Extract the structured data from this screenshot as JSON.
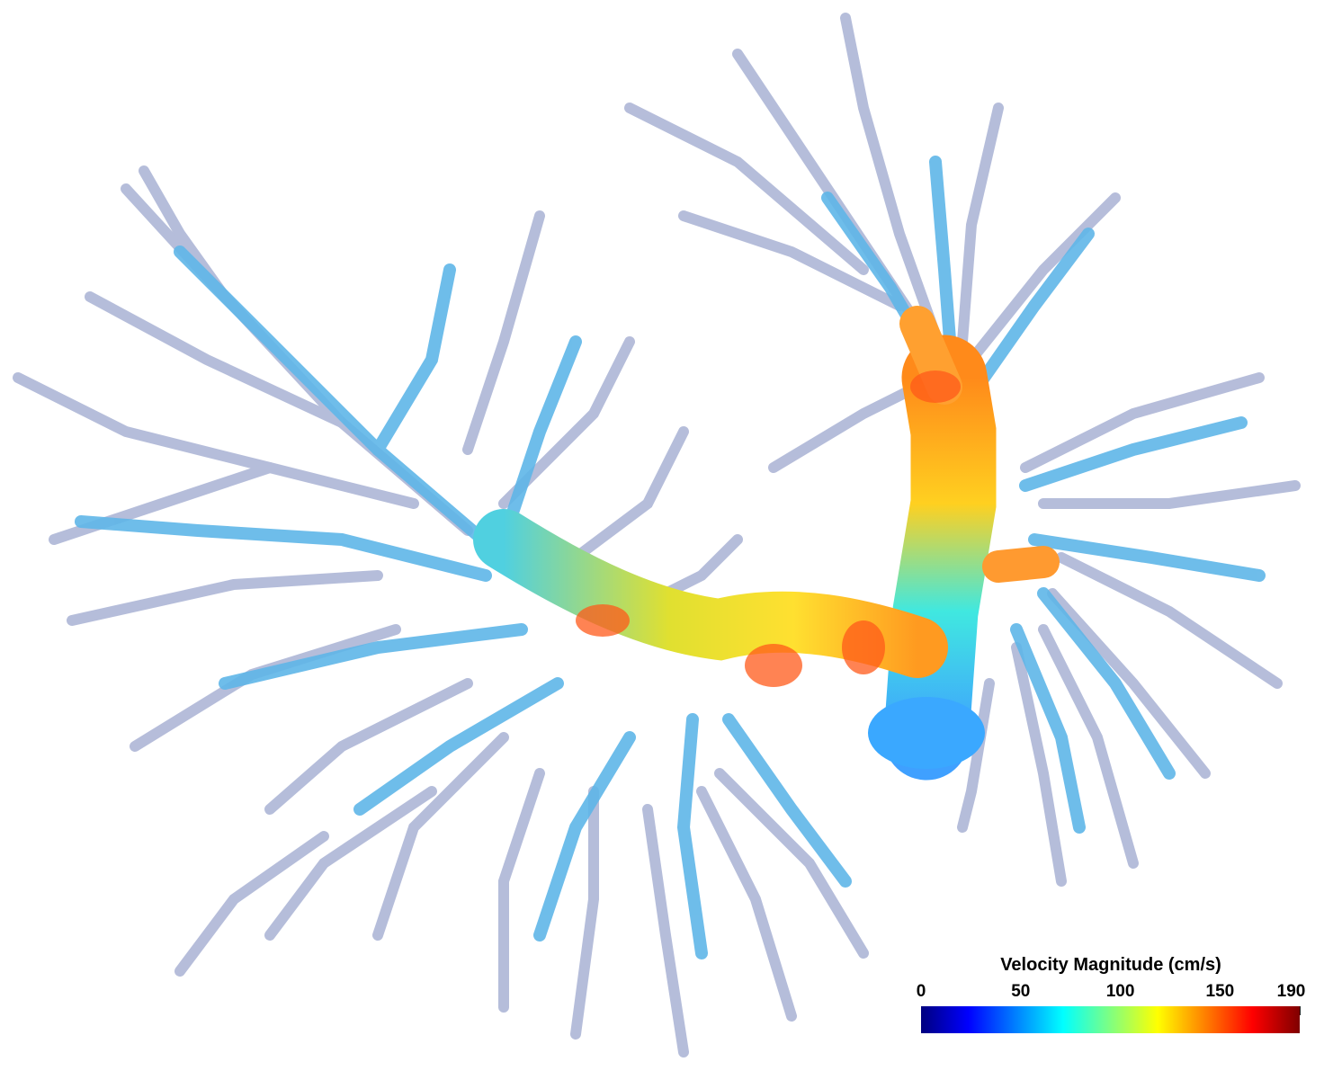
{
  "figure": {
    "description_colors": {
      "background": "#ffffff",
      "vessel_outline": "#9aa3c4"
    }
  },
  "colorbar": {
    "title": "Velocity Magnitude (cm/s)",
    "min": 0,
    "max": 190,
    "ticks": [
      {
        "value": 0,
        "label": "0"
      },
      {
        "value": 50,
        "label": "50"
      },
      {
        "value": 100,
        "label": "100"
      },
      {
        "value": 150,
        "label": "150"
      },
      {
        "value": 190,
        "label": "190"
      }
    ],
    "colormap": "jet",
    "colormap_stops": [
      "#00007f",
      "#0000ff",
      "#0080ff",
      "#00ffff",
      "#80ff80",
      "#ffff00",
      "#ff8000",
      "#ff0000",
      "#7f0000"
    ]
  }
}
